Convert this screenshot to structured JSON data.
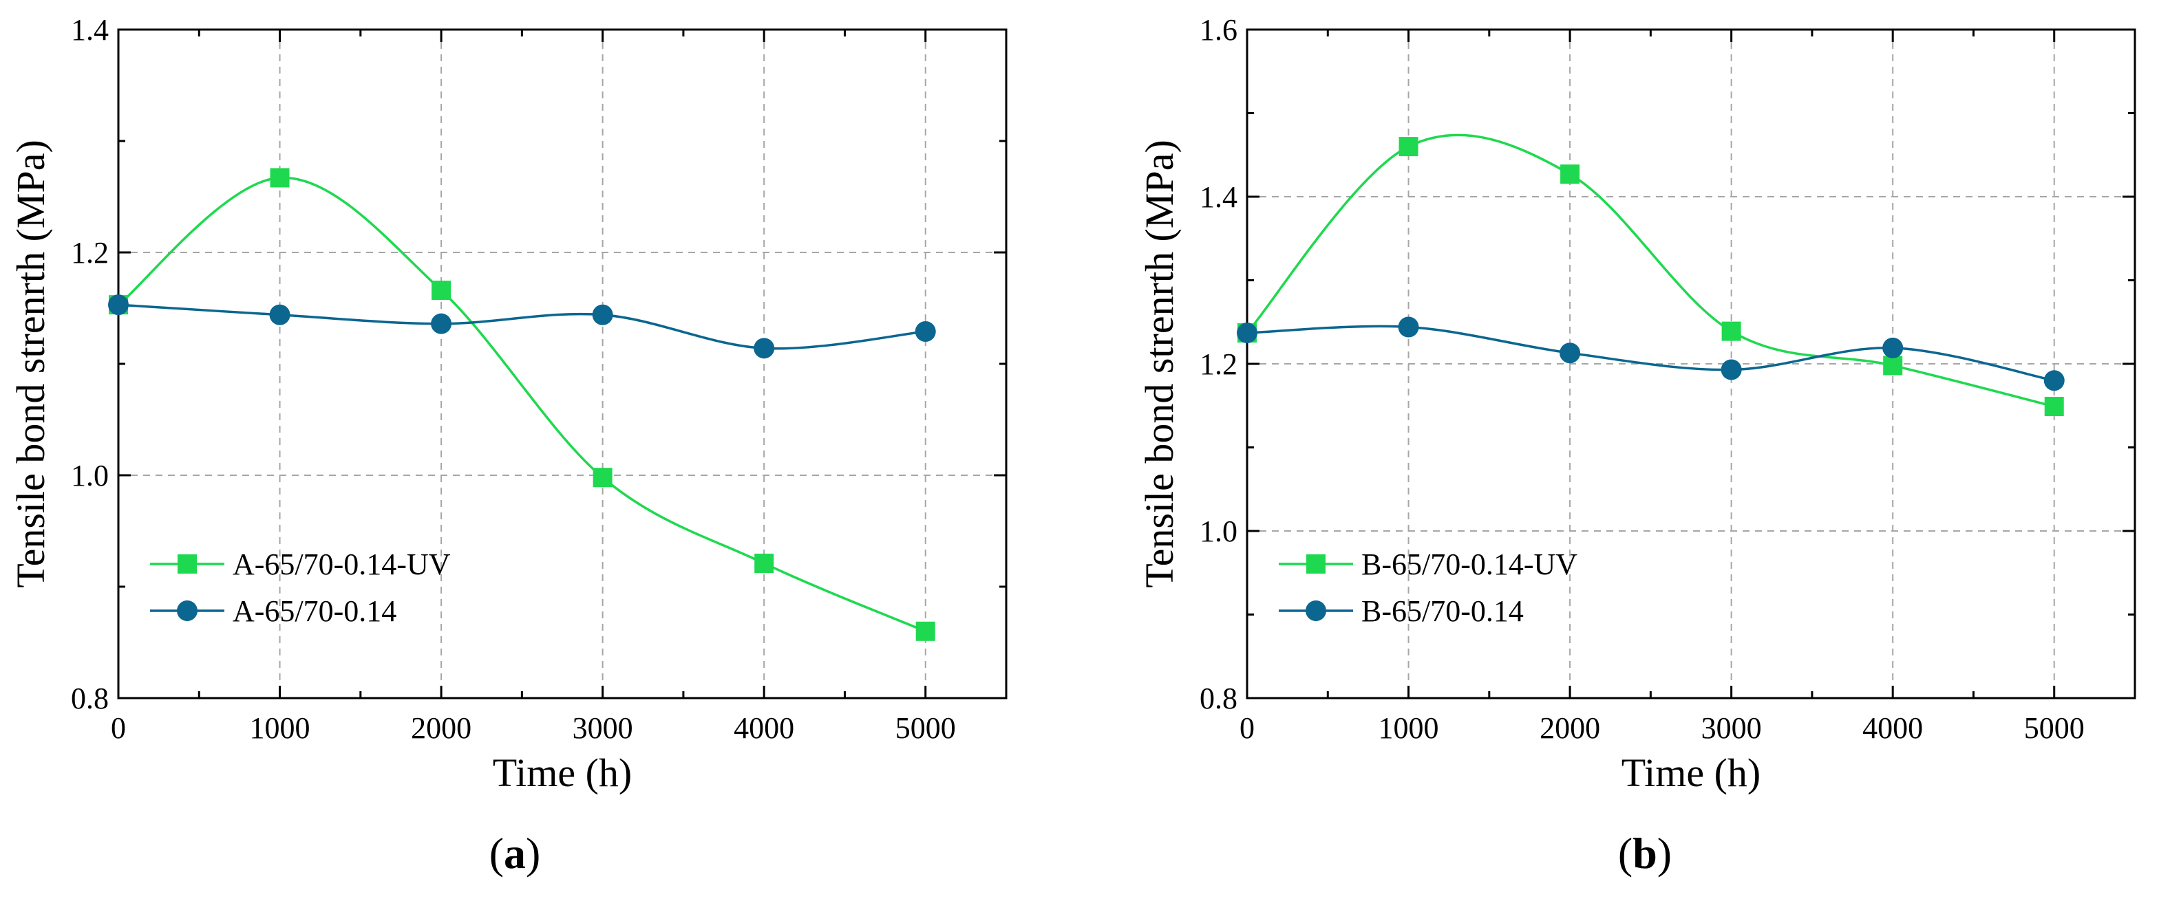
{
  "colors": {
    "uv": "#1ed94f",
    "base": "#0b6690"
  },
  "chart_data": [
    {
      "type": "line",
      "panel_label": "a",
      "xlabel": "Time (h)",
      "ylabel": "Tensile bond strenrth (MPa)",
      "xlim": [
        0,
        5500
      ],
      "ylim": [
        0.8,
        1.4
      ],
      "xticks": [
        0,
        1000,
        2000,
        3000,
        4000,
        5000
      ],
      "yticks": [
        0.8,
        1.0,
        1.2,
        1.4
      ],
      "ytick_labels": [
        "0.8",
        "1.0",
        "1.2",
        "1.4"
      ],
      "grid": true,
      "legend_position": "bottom-left",
      "x": [
        0,
        1000,
        2000,
        3000,
        4000,
        5000
      ],
      "series": [
        {
          "name": "A-65/70-0.14-UV",
          "marker": "square",
          "color": "#1ed94f",
          "values": [
            1.153,
            1.267,
            1.166,
            0.998,
            0.921,
            0.86
          ]
        },
        {
          "name": "A-65/70-0.14",
          "marker": "circle",
          "color": "#0b6690",
          "values": [
            1.153,
            1.144,
            1.136,
            1.144,
            1.114,
            1.129
          ]
        }
      ]
    },
    {
      "type": "line",
      "panel_label": "b",
      "xlabel": "Time (h)",
      "ylabel": "Tensile bond strenrth (MPa)",
      "xlim": [
        0,
        5500
      ],
      "ylim": [
        0.8,
        1.6
      ],
      "xticks": [
        0,
        1000,
        2000,
        3000,
        4000,
        5000
      ],
      "yticks": [
        0.8,
        1.0,
        1.2,
        1.4,
        1.6
      ],
      "ytick_labels": [
        "0.8",
        "1.0",
        "1.2",
        "1.4",
        "1.6"
      ],
      "grid": true,
      "legend_position": "bottom-left",
      "x": [
        0,
        1000,
        2000,
        3000,
        4000,
        5000
      ],
      "series": [
        {
          "name": "B-65/70-0.14-UV",
          "marker": "square",
          "color": "#1ed94f",
          "values": [
            1.237,
            1.46,
            1.427,
            1.239,
            1.198,
            1.149
          ]
        },
        {
          "name": "B-65/70-0.14",
          "marker": "circle",
          "color": "#0b6690",
          "values": [
            1.237,
            1.244,
            1.213,
            1.193,
            1.219,
            1.18
          ]
        }
      ]
    }
  ]
}
